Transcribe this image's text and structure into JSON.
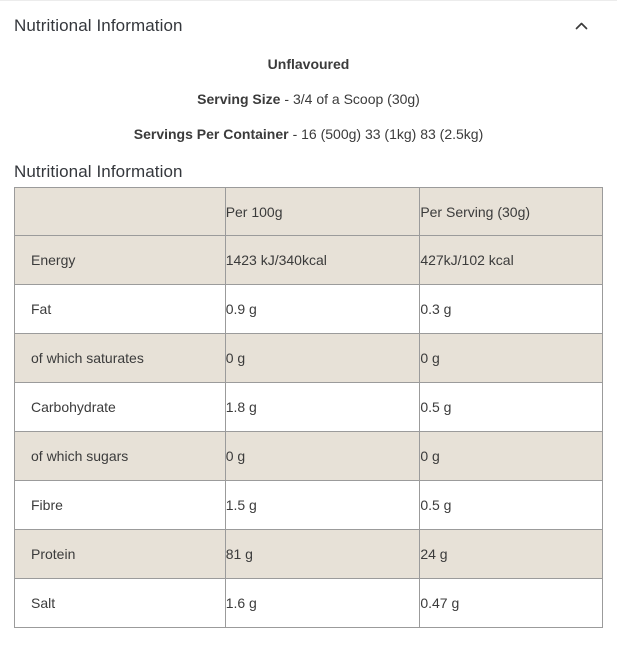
{
  "accordion": {
    "title": "Nutritional Information",
    "chevron_icon": "chevron-up"
  },
  "intro": {
    "flavour": "Unflavoured",
    "serving_size_label": "Serving Size",
    "serving_size_rest": "- 3/4 of a Scoop (30g)",
    "servings_label": "Servings Per Container",
    "servings_rest": "- 16 (500g) 33 (1kg) 83 (2.5kg)"
  },
  "table": {
    "title": "Nutritional Information",
    "columns": [
      "",
      "Per 100g",
      "Per Serving (30g)"
    ],
    "rows": [
      {
        "label": "Energy",
        "per_100g": "1423 kJ/340kcal",
        "per_serving": "427kJ/102 kcal"
      },
      {
        "label": "Fat",
        "per_100g": "0.9 g",
        "per_serving": "0.3 g"
      },
      {
        "label": "of which saturates",
        "per_100g": "0 g",
        "per_serving": "0 g"
      },
      {
        "label": "Carbohydrate",
        "per_100g": "1.8 g",
        "per_serving": "0.5 g"
      },
      {
        "label": "of which sugars",
        "per_100g": "0 g",
        "per_serving": "0 g"
      },
      {
        "label": "Fibre",
        "per_100g": "1.5 g",
        "per_serving": "0.5 g"
      },
      {
        "label": "Protein",
        "per_100g": "81 g",
        "per_serving": "24 g"
      },
      {
        "label": "Salt",
        "per_100g": "1.6 g",
        "per_serving": "0.47 g"
      }
    ]
  },
  "colors": {
    "row_shade": "#e7e1d7",
    "border": "#9b9b9b",
    "text": "#3b3b3b",
    "title": "#34373c"
  }
}
